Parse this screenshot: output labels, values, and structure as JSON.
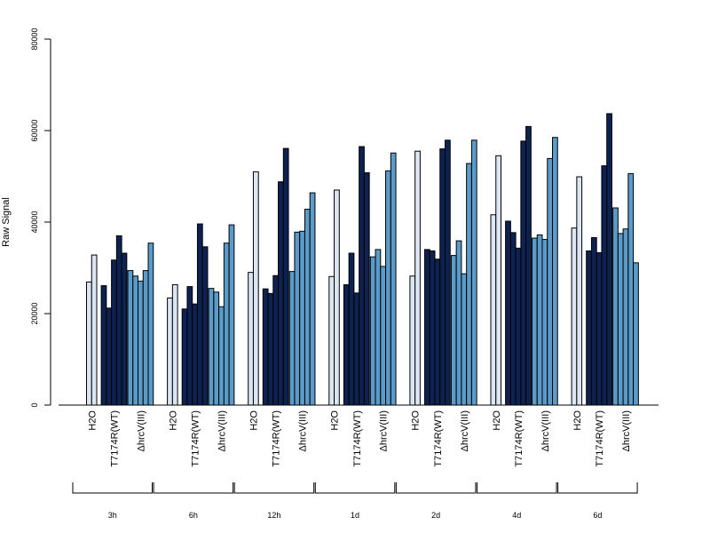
{
  "chart_data": {
    "type": "bar",
    "title": "",
    "xlabel": "",
    "ylabel": "Raw Signal",
    "ylim": [
      0,
      80000
    ],
    "yticks": [
      0,
      20000,
      40000,
      60000,
      80000
    ],
    "grid": false,
    "time_groups": [
      "3h",
      "6h",
      "12h",
      "1d",
      "2d",
      "4d",
      "6d"
    ],
    "treatments": [
      {
        "name": "H2O",
        "display": "H2O",
        "color": "#dce6f2"
      },
      {
        "name": "T7174R(WT)",
        "display": "T7174R(WT)",
        "color": "#0d2250"
      },
      {
        "name": "ΔhrcV(III)",
        "display": "ΔhrcV(III)",
        "color": "#5b9bc9"
      }
    ],
    "values": {
      "3h": {
        "H2O": [
          26900,
          32800
        ],
        "T7174R(WT)": [
          26100,
          21200,
          31700,
          37000,
          33200
        ],
        "ΔhrcV(III)": [
          29400,
          28200,
          27100,
          29400,
          35400
        ]
      },
      "6h": {
        "H2O": [
          23400,
          26300
        ],
        "T7174R(WT)": [
          21000,
          25900,
          22100,
          39600,
          34600
        ],
        "ΔhrcV(III)": [
          25500,
          24700,
          21500,
          35400,
          39400
        ]
      },
      "12h": {
        "H2O": [
          29000,
          51000
        ],
        "T7174R(WT)": [
          25400,
          24400,
          28300,
          48800,
          56100
        ],
        "ΔhrcV(III)": [
          29200,
          37800,
          38000,
          42800,
          46400
        ]
      },
      "1d": {
        "H2O": [
          28100,
          47000
        ],
        "T7174R(WT)": [
          26300,
          33200,
          24500,
          56500,
          50800
        ],
        "ΔhrcV(III)": [
          32400,
          34000,
          30300,
          51200,
          55100
        ]
      },
      "2d": {
        "H2O": [
          28200,
          55500
        ],
        "T7174R(WT)": [
          34000,
          33700,
          31900,
          56000,
          57900
        ],
        "ΔhrcV(III)": [
          32700,
          35900,
          28700,
          52800,
          57900
        ]
      },
      "4d": {
        "H2O": [
          41600,
          54500
        ],
        "T7174R(WT)": [
          40200,
          37700,
          34300,
          57700,
          60900
        ],
        "ΔhrcV(III)": [
          36500,
          37200,
          36200,
          53900,
          58500
        ]
      },
      "6d": {
        "H2O": [
          38700,
          49900
        ],
        "T7174R(WT)": [
          33700,
          36600,
          33300,
          52300,
          63700
        ],
        "ΔhrcV(III)": [
          43100,
          37500,
          38500,
          50600,
          31100
        ]
      }
    }
  }
}
